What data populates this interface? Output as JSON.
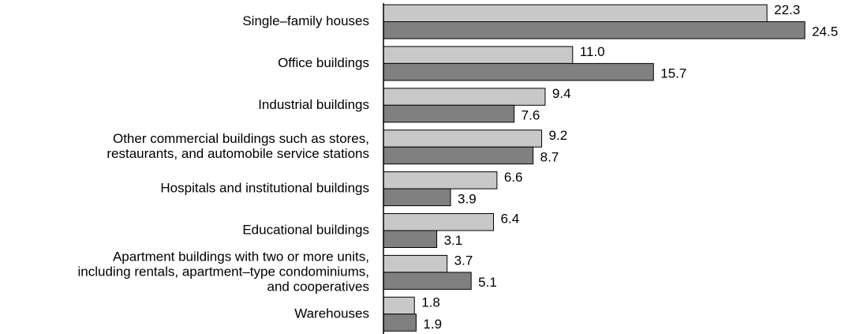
{
  "chart_data": {
    "type": "barh",
    "categories": [
      [
        "Single–family houses"
      ],
      [
        "Office buildings"
      ],
      [
        "Industrial buildings"
      ],
      [
        "Other commercial buildings such as stores,",
        "restaurants, and automobile service stations"
      ],
      [
        "Hospitals and institutional buildings"
      ],
      [
        "Educational buildings"
      ],
      [
        "Apartment buildings with two or more units,",
        "including rentals, apartment–type condominiums,",
        "and cooperatives"
      ],
      [
        "Warehouses"
      ]
    ],
    "series": [
      {
        "color": "#c8c8c8",
        "values": [
          22.3,
          11.0,
          9.4,
          9.2,
          6.6,
          6.4,
          3.7,
          1.8
        ],
        "value_labels": [
          "22.3",
          "11.0",
          "9.4",
          "9.2",
          "6.6",
          "6.4",
          "3.7",
          "1.8"
        ]
      },
      {
        "color": "#808080",
        "values": [
          24.5,
          15.7,
          7.6,
          8.7,
          3.9,
          3.1,
          5.1,
          1.9
        ],
        "value_labels": [
          "24.5",
          "15.7",
          "7.6",
          "8.7",
          "3.9",
          "3.1",
          "5.1",
          "1.9"
        ]
      }
    ],
    "xlim": [
      0,
      25
    ]
  }
}
